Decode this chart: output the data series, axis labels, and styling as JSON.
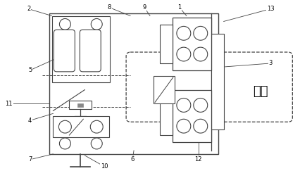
{
  "fig_width": 4.26,
  "fig_height": 2.43,
  "dpi": 100,
  "bg_color": "#ffffff",
  "line_color": "#444444",
  "label_color": "#000000",
  "cable_text": "线缆"
}
